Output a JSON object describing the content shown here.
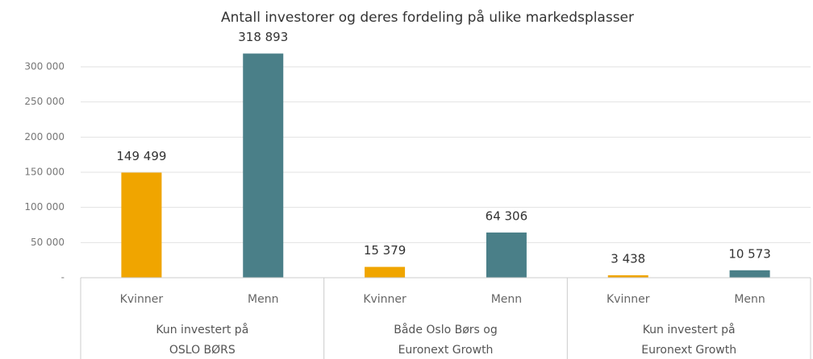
{
  "chart_data": {
    "type": "bar",
    "title": "Antall investorer og deres fordeling på ulike markedsplasser",
    "categories": [
      "Kvinner",
      "Menn",
      "Kvinner",
      "Menn",
      "Kvinner",
      "Menn"
    ],
    "groups": [
      [
        "Kun investert på",
        "OSLO BØRS"
      ],
      [
        "Både Oslo Børs og",
        "Euronext Growth"
      ],
      [
        "Kun investert på",
        "Euronext Growth"
      ]
    ],
    "values": [
      149499,
      318893,
      15379,
      64306,
      3438,
      10573
    ],
    "value_labels": [
      "149 499",
      "318 893",
      "15 379",
      "64 306",
      "3 438",
      "10 573"
    ],
    "colors": [
      "#f0a500",
      "#4a7f88",
      "#f0a500",
      "#4a7f88",
      "#f0a500",
      "#4a7f88"
    ],
    "ylim": [
      0,
      300000
    ],
    "yticks": [
      {
        "value": 0,
        "label": "-"
      },
      {
        "value": 50000,
        "label": "50 000"
      },
      {
        "value": 100000,
        "label": "100 000"
      },
      {
        "value": 150000,
        "label": "150 000"
      },
      {
        "value": 200000,
        "label": "200 000"
      },
      {
        "value": 250000,
        "label": "250 000"
      },
      {
        "value": 300000,
        "label": "300 000"
      }
    ],
    "grid": true
  }
}
